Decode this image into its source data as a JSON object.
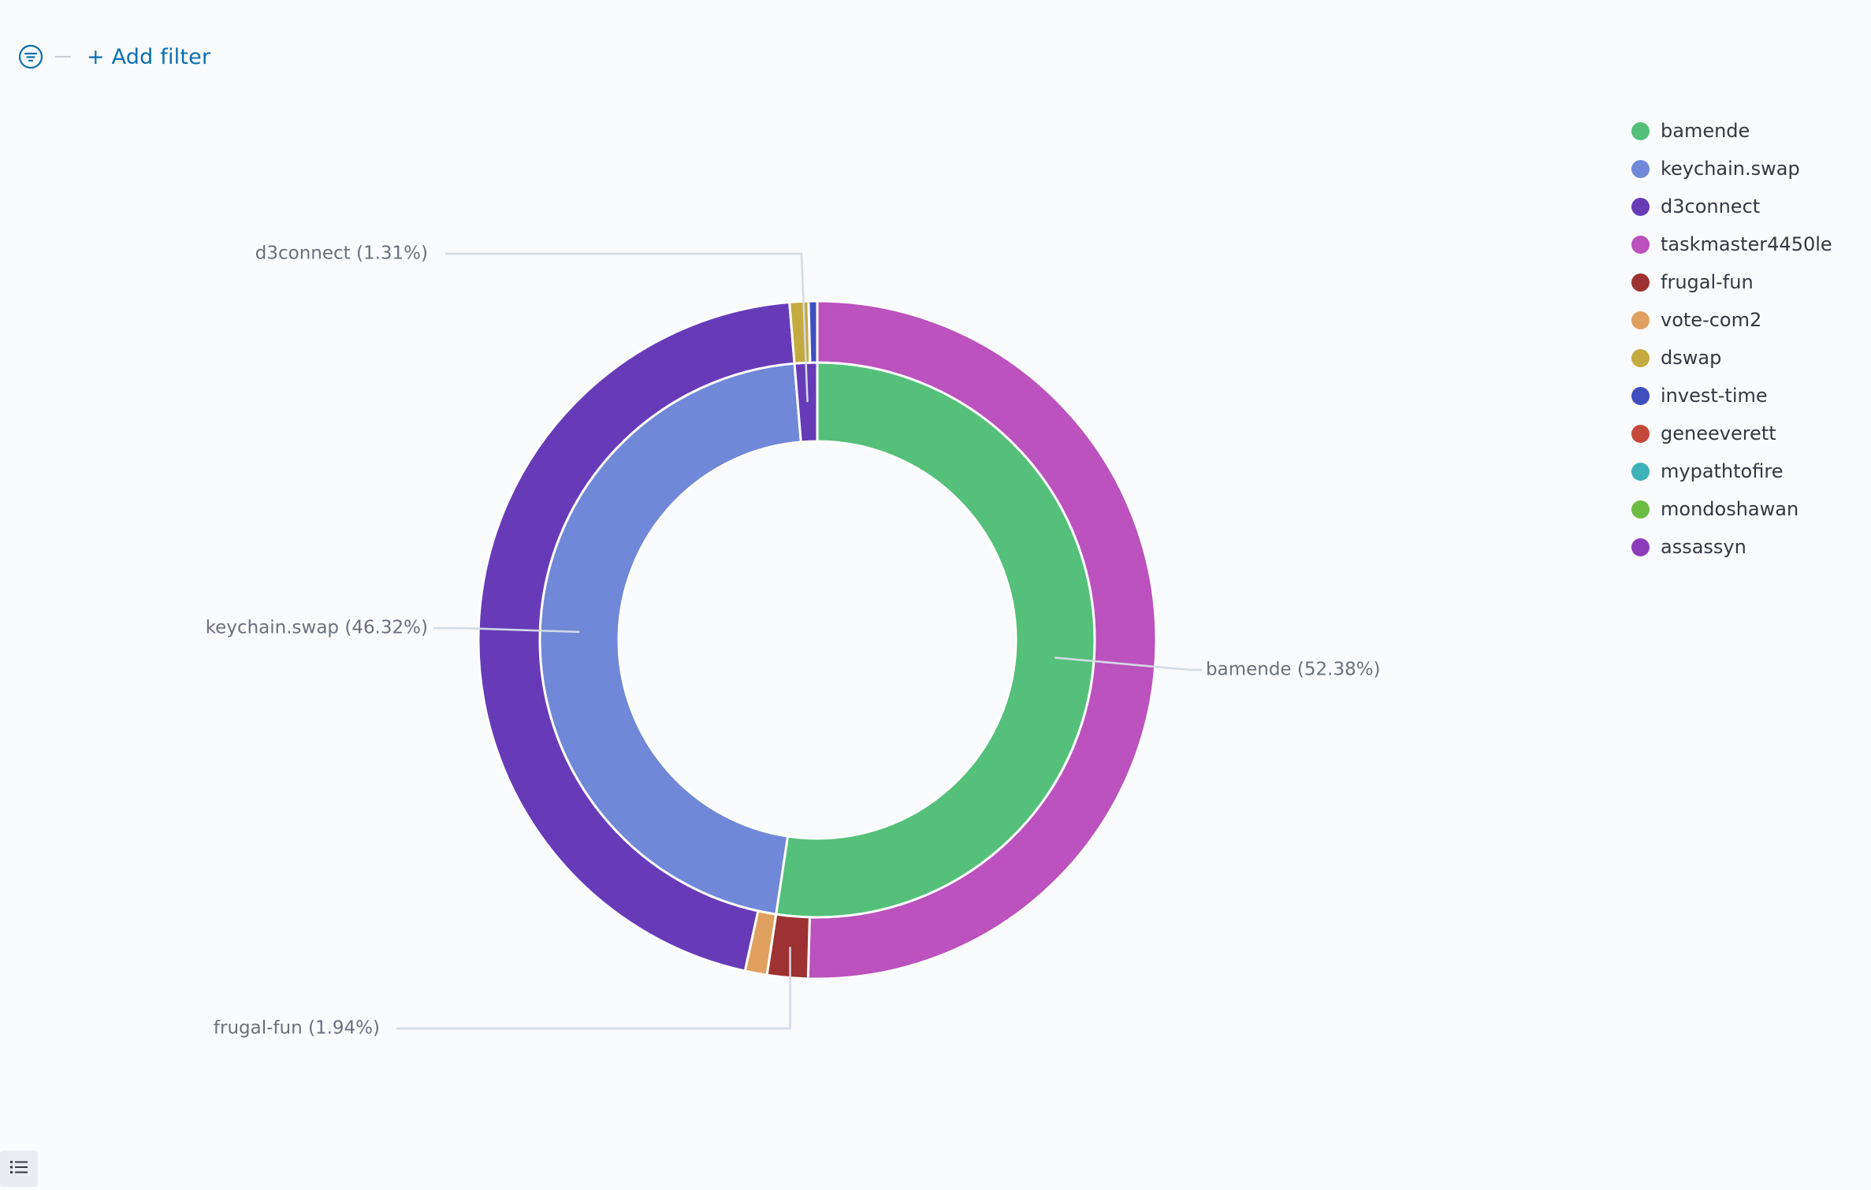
{
  "filter_bar": {
    "add_filter_label": "+ Add filter"
  },
  "chart_data": {
    "type": "pie",
    "title": "",
    "donut": true,
    "inner_ring": {
      "categories": [
        "bamende",
        "keychain.swap",
        "d3connect"
      ],
      "values": [
        52.38,
        46.32,
        1.31
      ],
      "labels": [
        "bamende (52.38%)",
        "keychain.swap (46.32%)",
        "d3connect (1.31%)"
      ]
    },
    "outer_ring": {
      "slices": [
        {
          "parent": "bamende",
          "name": "taskmaster4450le",
          "value": 50.44
        },
        {
          "parent": "bamende",
          "name": "frugal-fun",
          "value": 1.94
        },
        {
          "parent": "keychain.swap",
          "name": "vote-com2",
          "value": 1.05
        },
        {
          "parent": "keychain.swap",
          "name": "d3connect",
          "value": 45.27
        },
        {
          "parent": "d3connect",
          "name": "dswap",
          "value": 0.9
        },
        {
          "parent": "d3connect",
          "name": "invest-time",
          "value": 0.41
        }
      ]
    },
    "outer_labels": [
      {
        "name": "frugal-fun",
        "text": "frugal-fun (1.94%)"
      }
    ],
    "legend": {
      "position": "top-right",
      "items": [
        {
          "label": "bamende",
          "color": "#54c079"
        },
        {
          "label": "keychain.swap",
          "color": "#6f88d8"
        },
        {
          "label": "d3connect",
          "color": "#673bb8"
        },
        {
          "label": "taskmaster4450le",
          "color": "#bb52bd"
        },
        {
          "label": "frugal-fun",
          "color": "#9e3131"
        },
        {
          "label": "vote-com2",
          "color": "#dfa060"
        },
        {
          "label": "dswap",
          "color": "#c4aa3f"
        },
        {
          "label": "invest-time",
          "color": "#3f4fc0"
        },
        {
          "label": "geneeverett",
          "color": "#c5493b"
        },
        {
          "label": "mypathtofire",
          "color": "#3fb1b9"
        },
        {
          "label": "mondoshawan",
          "color": "#6cbd44"
        },
        {
          "label": "assassyn",
          "color": "#8d3dbb"
        }
      ]
    }
  }
}
